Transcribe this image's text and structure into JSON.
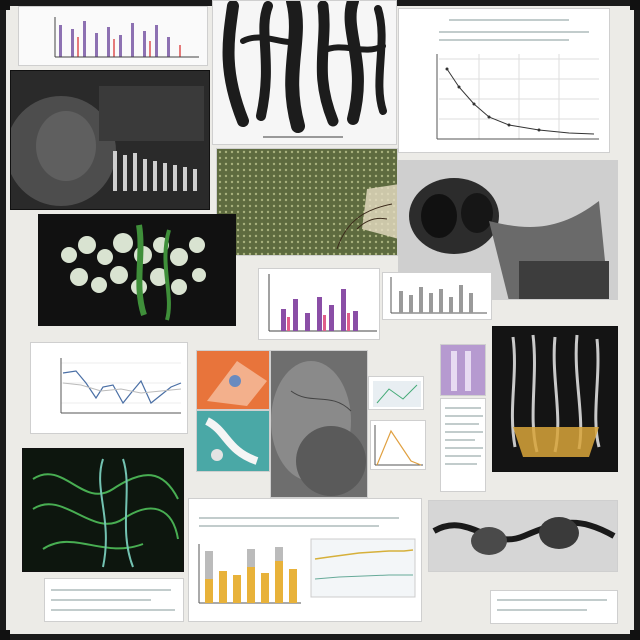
{
  "panels": {
    "collage_title": "",
    "caption_middle": "",
    "caption_right": "",
    "caption_green": "",
    "caption_bottom": ""
  }
}
